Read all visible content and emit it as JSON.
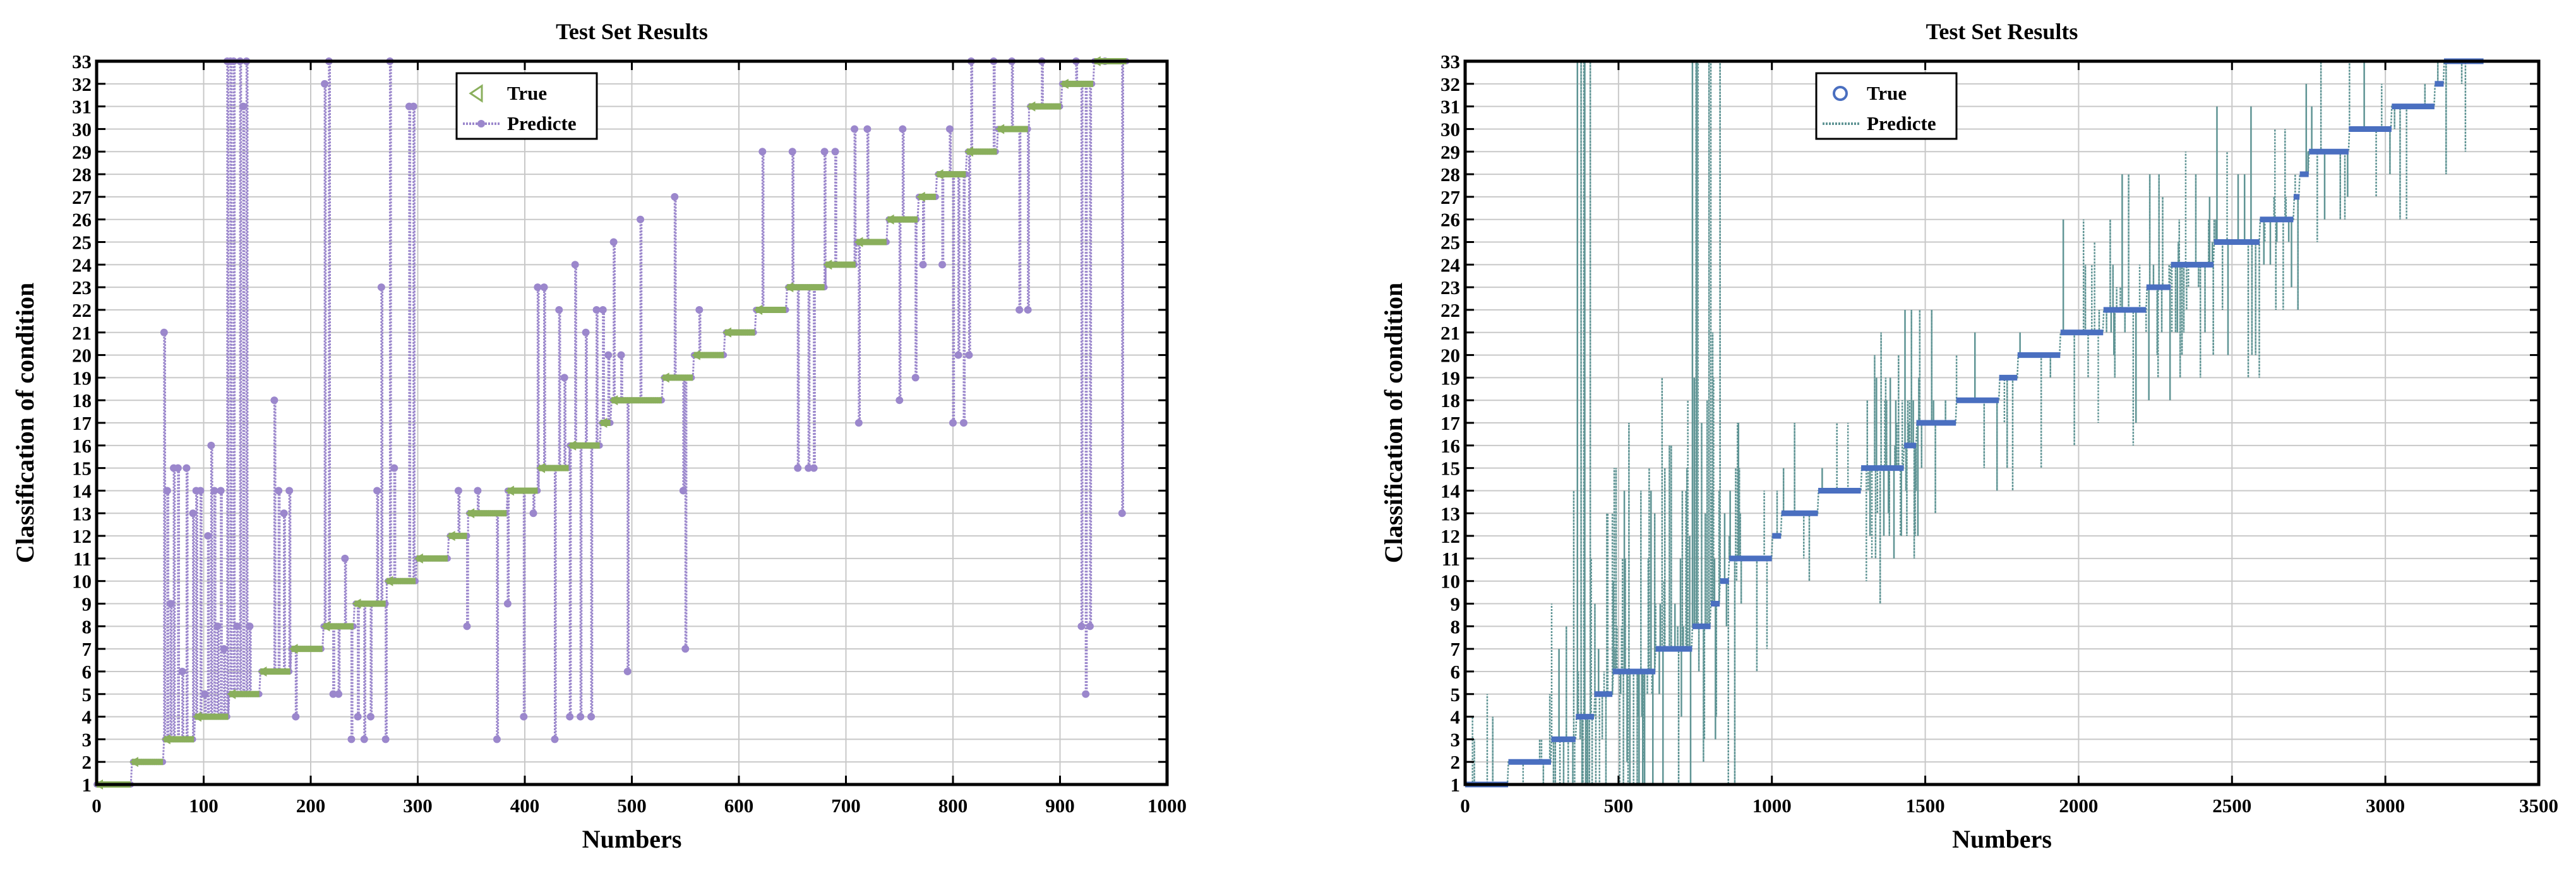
{
  "chart_data": [
    {
      "type": "line",
      "title": "Test Set Results",
      "xlabel": "Numbers",
      "ylabel": "Classification of condition",
      "xlim": [
        0,
        1000
      ],
      "ylim": [
        1,
        33
      ],
      "xticks": [
        "0",
        "100",
        "200",
        "300",
        "400",
        "500",
        "600",
        "700",
        "800",
        "900",
        "1000"
      ],
      "yticks": [
        "1",
        "2",
        "3",
        "4",
        "5",
        "6",
        "7",
        "8",
        "9",
        "10",
        "11",
        "12",
        "13",
        "14",
        "15",
        "16",
        "17",
        "18",
        "19",
        "20",
        "21",
        "22",
        "23",
        "24",
        "25",
        "26",
        "27",
        "28",
        "29",
        "30",
        "31",
        "32",
        "33"
      ],
      "grid": true,
      "legend_position": "top-center",
      "colors": {
        "true": "#8aaf5c",
        "predicted": "#9b87cc",
        "axis": "#000000",
        "grid": "#c8c8c8"
      },
      "series": [
        {
          "name": "True",
          "marker": "triangle-left",
          "steps": [
            {
              "x_start": 0,
              "x_end": 32,
              "value": 1
            },
            {
              "x_start": 33,
              "x_end": 62,
              "value": 2
            },
            {
              "x_start": 63,
              "x_end": 91,
              "value": 3
            },
            {
              "x_start": 92,
              "x_end": 123,
              "value": 4
            },
            {
              "x_start": 124,
              "x_end": 152,
              "value": 5
            },
            {
              "x_start": 153,
              "x_end": 181,
              "value": 6
            },
            {
              "x_start": 182,
              "x_end": 211,
              "value": 7
            },
            {
              "x_start": 212,
              "x_end": 240,
              "value": 8
            },
            {
              "x_start": 241,
              "x_end": 270,
              "value": 9
            },
            {
              "x_start": 271,
              "x_end": 298,
              "value": 10
            },
            {
              "x_start": 299,
              "x_end": 328,
              "value": 11
            },
            {
              "x_start": 329,
              "x_end": 346,
              "value": 12
            },
            {
              "x_start": 347,
              "x_end": 383,
              "value": 13
            },
            {
              "x_start": 384,
              "x_end": 412,
              "value": 14
            },
            {
              "x_start": 413,
              "x_end": 441,
              "value": 15
            },
            {
              "x_start": 442,
              "x_end": 470,
              "value": 16
            },
            {
              "x_start": 471,
              "x_end": 480,
              "value": 17
            },
            {
              "x_start": 481,
              "x_end": 528,
              "value": 18
            },
            {
              "x_start": 529,
              "x_end": 557,
              "value": 19
            },
            {
              "x_start": 558,
              "x_end": 586,
              "value": 20
            },
            {
              "x_start": 587,
              "x_end": 615,
              "value": 21
            },
            {
              "x_start": 616,
              "x_end": 644,
              "value": 22
            },
            {
              "x_start": 645,
              "x_end": 680,
              "value": 23
            },
            {
              "x_start": 681,
              "x_end": 709,
              "value": 24
            },
            {
              "x_start": 710,
              "x_end": 738,
              "value": 25
            },
            {
              "x_start": 739,
              "x_end": 767,
              "value": 26
            },
            {
              "x_start": 768,
              "x_end": 784,
              "value": 27
            },
            {
              "x_start": 785,
              "x_end": 812,
              "value": 28
            },
            {
              "x_start": 813,
              "x_end": 841,
              "value": 29
            },
            {
              "x_start": 842,
              "x_end": 870,
              "value": 30
            },
            {
              "x_start": 871,
              "x_end": 901,
              "value": 31
            },
            {
              "x_start": 902,
              "x_end": 931,
              "value": 32
            },
            {
              "x_start": 932,
              "x_end": 962,
              "value": 33
            }
          ]
        },
        {
          "name": "Predicte",
          "marker": "circle",
          "deviations": [
            {
              "x": 63,
              "value": 21
            },
            {
              "x": 66,
              "value": 14
            },
            {
              "x": 69,
              "value": 9
            },
            {
              "x": 72,
              "value": 15
            },
            {
              "x": 76,
              "value": 15
            },
            {
              "x": 80,
              "value": 6
            },
            {
              "x": 84,
              "value": 15
            },
            {
              "x": 90,
              "value": 13
            },
            {
              "x": 93,
              "value": 14
            },
            {
              "x": 97,
              "value": 14
            },
            {
              "x": 101,
              "value": 5
            },
            {
              "x": 104,
              "value": 12
            },
            {
              "x": 107,
              "value": 16
            },
            {
              "x": 110,
              "value": 14
            },
            {
              "x": 113,
              "value": 8
            },
            {
              "x": 116,
              "value": 14
            },
            {
              "x": 119,
              "value": 7
            },
            {
              "x": 122,
              "value": 33
            },
            {
              "x": 125,
              "value": 33
            },
            {
              "x": 128,
              "value": 33
            },
            {
              "x": 131,
              "value": 8
            },
            {
              "x": 134,
              "value": 33
            },
            {
              "x": 137,
              "value": 31
            },
            {
              "x": 140,
              "value": 33
            },
            {
              "x": 143,
              "value": 8
            },
            {
              "x": 166,
              "value": 18
            },
            {
              "x": 170,
              "value": 14
            },
            {
              "x": 175,
              "value": 13
            },
            {
              "x": 180,
              "value": 14
            },
            {
              "x": 186,
              "value": 4
            },
            {
              "x": 213,
              "value": 32
            },
            {
              "x": 217,
              "value": 33
            },
            {
              "x": 221,
              "value": 5
            },
            {
              "x": 226,
              "value": 5
            },
            {
              "x": 232,
              "value": 11
            },
            {
              "x": 238,
              "value": 3
            },
            {
              "x": 244,
              "value": 4
            },
            {
              "x": 250,
              "value": 3
            },
            {
              "x": 256,
              "value": 4
            },
            {
              "x": 262,
              "value": 14
            },
            {
              "x": 266,
              "value": 23
            },
            {
              "x": 270,
              "value": 3
            },
            {
              "x": 274,
              "value": 33
            },
            {
              "x": 278,
              "value": 15
            },
            {
              "x": 292,
              "value": 31
            },
            {
              "x": 296,
              "value": 31
            },
            {
              "x": 338,
              "value": 14
            },
            {
              "x": 346,
              "value": 8
            },
            {
              "x": 356,
              "value": 14
            },
            {
              "x": 374,
              "value": 3
            },
            {
              "x": 384,
              "value": 9
            },
            {
              "x": 399,
              "value": 4
            },
            {
              "x": 408,
              "value": 13
            },
            {
              "x": 412,
              "value": 23
            },
            {
              "x": 418,
              "value": 23
            },
            {
              "x": 428,
              "value": 3
            },
            {
              "x": 432,
              "value": 22
            },
            {
              "x": 437,
              "value": 19
            },
            {
              "x": 442,
              "value": 4
            },
            {
              "x": 447,
              "value": 24
            },
            {
              "x": 452,
              "value": 4
            },
            {
              "x": 457,
              "value": 21
            },
            {
              "x": 462,
              "value": 4
            },
            {
              "x": 467,
              "value": 22
            },
            {
              "x": 473,
              "value": 22
            },
            {
              "x": 478,
              "value": 20
            },
            {
              "x": 483,
              "value": 25
            },
            {
              "x": 490,
              "value": 20
            },
            {
              "x": 496,
              "value": 6
            },
            {
              "x": 508,
              "value": 26
            },
            {
              "x": 540,
              "value": 27
            },
            {
              "x": 548,
              "value": 14
            },
            {
              "x": 550,
              "value": 7
            },
            {
              "x": 563,
              "value": 22
            },
            {
              "x": 622,
              "value": 29
            },
            {
              "x": 650,
              "value": 29
            },
            {
              "x": 655,
              "value": 15
            },
            {
              "x": 665,
              "value": 15
            },
            {
              "x": 670,
              "value": 15
            },
            {
              "x": 680,
              "value": 29
            },
            {
              "x": 690,
              "value": 29
            },
            {
              "x": 708,
              "value": 30
            },
            {
              "x": 712,
              "value": 17
            },
            {
              "x": 720,
              "value": 30
            },
            {
              "x": 750,
              "value": 18
            },
            {
              "x": 753,
              "value": 30
            },
            {
              "x": 765,
              "value": 19
            },
            {
              "x": 772,
              "value": 24
            },
            {
              "x": 790,
              "value": 24
            },
            {
              "x": 797,
              "value": 30
            },
            {
              "x": 800,
              "value": 17
            },
            {
              "x": 805,
              "value": 20
            },
            {
              "x": 810,
              "value": 17
            },
            {
              "x": 815,
              "value": 20
            },
            {
              "x": 817,
              "value": 33
            },
            {
              "x": 838,
              "value": 33
            },
            {
              "x": 855,
              "value": 33
            },
            {
              "x": 862,
              "value": 22
            },
            {
              "x": 870,
              "value": 22
            },
            {
              "x": 883,
              "value": 33
            },
            {
              "x": 915,
              "value": 33
            },
            {
              "x": 920,
              "value": 8
            },
            {
              "x": 924,
              "value": 5
            },
            {
              "x": 928,
              "value": 8
            },
            {
              "x": 942,
              "value": 33
            },
            {
              "x": 958,
              "value": 13
            }
          ]
        }
      ]
    },
    {
      "type": "line",
      "title": "Test Set Results",
      "xlabel": "Numbers",
      "ylabel": "Classification of condition",
      "xlim": [
        0,
        3500
      ],
      "ylim": [
        1,
        33
      ],
      "xticks": [
        "0",
        "500",
        "1000",
        "1500",
        "2000",
        "2500",
        "3000",
        "3500"
      ],
      "yticks": [
        "1",
        "2",
        "3",
        "4",
        "5",
        "6",
        "7",
        "8",
        "9",
        "10",
        "11",
        "12",
        "13",
        "14",
        "15",
        "16",
        "17",
        "18",
        "19",
        "20",
        "21",
        "22",
        "23",
        "24",
        "25",
        "26",
        "27",
        "28",
        "29",
        "30",
        "31",
        "32",
        "33"
      ],
      "grid": true,
      "legend_position": "top-left",
      "colors": {
        "true": "#4a6fc0",
        "predicted": "#5f9494",
        "axis": "#000000",
        "grid": "#c8c8c8"
      },
      "series": [
        {
          "name": "True",
          "marker": "circle",
          "steps": [
            {
              "x_start": 0,
              "x_end": 140,
              "value": 1
            },
            {
              "x_start": 141,
              "x_end": 280,
              "value": 2
            },
            {
              "x_start": 281,
              "x_end": 360,
              "value": 3
            },
            {
              "x_start": 361,
              "x_end": 420,
              "value": 4
            },
            {
              "x_start": 421,
              "x_end": 480,
              "value": 5
            },
            {
              "x_start": 481,
              "x_end": 620,
              "value": 6
            },
            {
              "x_start": 621,
              "x_end": 740,
              "value": 7
            },
            {
              "x_start": 741,
              "x_end": 800,
              "value": 8
            },
            {
              "x_start": 801,
              "x_end": 830,
              "value": 9
            },
            {
              "x_start": 831,
              "x_end": 860,
              "value": 10
            },
            {
              "x_start": 861,
              "x_end": 1000,
              "value": 11
            },
            {
              "x_start": 1001,
              "x_end": 1030,
              "value": 12
            },
            {
              "x_start": 1031,
              "x_end": 1150,
              "value": 13
            },
            {
              "x_start": 1151,
              "x_end": 1290,
              "value": 14
            },
            {
              "x_start": 1291,
              "x_end": 1430,
              "value": 15
            },
            {
              "x_start": 1431,
              "x_end": 1470,
              "value": 16
            },
            {
              "x_start": 1471,
              "x_end": 1600,
              "value": 17
            },
            {
              "x_start": 1601,
              "x_end": 1740,
              "value": 18
            },
            {
              "x_start": 1741,
              "x_end": 1800,
              "value": 19
            },
            {
              "x_start": 1801,
              "x_end": 1940,
              "value": 20
            },
            {
              "x_start": 1941,
              "x_end": 2080,
              "value": 21
            },
            {
              "x_start": 2081,
              "x_end": 2220,
              "value": 22
            },
            {
              "x_start": 2221,
              "x_end": 2300,
              "value": 23
            },
            {
              "x_start": 2301,
              "x_end": 2440,
              "value": 24
            },
            {
              "x_start": 2441,
              "x_end": 2590,
              "value": 25
            },
            {
              "x_start": 2591,
              "x_end": 2700,
              "value": 26
            },
            {
              "x_start": 2701,
              "x_end": 2720,
              "value": 27
            },
            {
              "x_start": 2721,
              "x_end": 2750,
              "value": 28
            },
            {
              "x_start": 2751,
              "x_end": 2880,
              "value": 29
            },
            {
              "x_start": 2881,
              "x_end": 3020,
              "value": 30
            },
            {
              "x_start": 3021,
              "x_end": 3160,
              "value": 31
            },
            {
              "x_start": 3161,
              "x_end": 3190,
              "value": 32
            },
            {
              "x_start": 3191,
              "x_end": 3320,
              "value": 33
            }
          ]
        },
        {
          "name": "Predicte",
          "marker": "dotted-line"
        }
      ]
    }
  ]
}
